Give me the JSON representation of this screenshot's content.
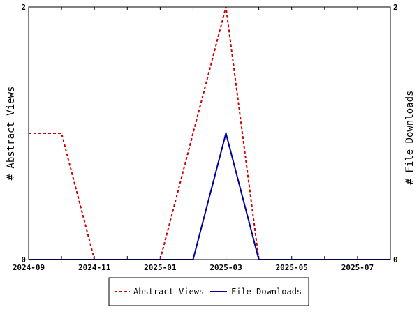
{
  "chart_data": {
    "type": "line",
    "x": [
      "2024-09",
      "2024-10",
      "2024-11",
      "2024-12",
      "2025-01",
      "2025-02",
      "2025-03",
      "2025-04",
      "2025-05",
      "2025-06",
      "2025-07",
      "2025-08"
    ],
    "x_tick_labels": [
      "2024-09",
      "2024-11",
      "2025-01",
      "2025-03",
      "2025-05",
      "2025-07"
    ],
    "xlim": [
      "2024-09",
      "2025-08"
    ],
    "series": [
      {
        "name": "Abstract Views",
        "axis": "left",
        "color": "#cc0000",
        "style": "dashed",
        "values": [
          1,
          1,
          0,
          0,
          0,
          1,
          2,
          0,
          0,
          0,
          0,
          0
        ]
      },
      {
        "name": "File Downloads",
        "axis": "right",
        "color": "#000099",
        "style": "solid",
        "values": [
          0,
          0,
          0,
          0,
          0,
          0,
          1,
          0,
          0,
          0,
          0,
          0
        ]
      }
    ],
    "ylabel_left": "# Abstract Views",
    "ylabel_right": "# File Downloads",
    "ylim_left": [
      0,
      2
    ],
    "ylim_right": [
      0,
      2
    ],
    "y_ticks_left": [
      "0",
      "2"
    ],
    "y_ticks_right": [
      "0",
      "2"
    ],
    "grid": false,
    "legend_position": "bottom-center"
  }
}
